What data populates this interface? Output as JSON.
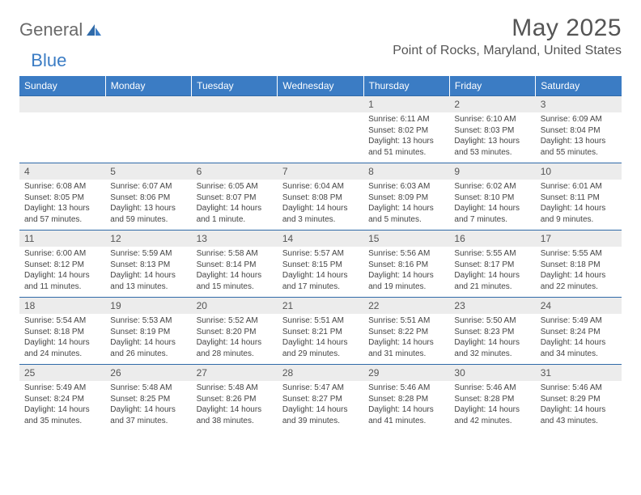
{
  "brand": {
    "part1": "General",
    "part2": "Blue"
  },
  "title": "May 2025",
  "location": "Point of Rocks, Maryland, United States",
  "colors": {
    "header_bg": "#3b7cc4",
    "header_text": "#ffffff",
    "numrow_bg": "#ececec",
    "row_border": "#2f6aa8",
    "body_text": "#444",
    "title_text": "#555"
  },
  "day_headers": [
    "Sunday",
    "Monday",
    "Tuesday",
    "Wednesday",
    "Thursday",
    "Friday",
    "Saturday"
  ],
  "weeks": [
    {
      "nums": [
        "",
        "",
        "",
        "",
        "1",
        "2",
        "3"
      ],
      "details": [
        null,
        null,
        null,
        null,
        {
          "sunrise": "6:11 AM",
          "sunset": "8:02 PM",
          "daylight": "13 hours and 51 minutes."
        },
        {
          "sunrise": "6:10 AM",
          "sunset": "8:03 PM",
          "daylight": "13 hours and 53 minutes."
        },
        {
          "sunrise": "6:09 AM",
          "sunset": "8:04 PM",
          "daylight": "13 hours and 55 minutes."
        }
      ]
    },
    {
      "nums": [
        "4",
        "5",
        "6",
        "7",
        "8",
        "9",
        "10"
      ],
      "details": [
        {
          "sunrise": "6:08 AM",
          "sunset": "8:05 PM",
          "daylight": "13 hours and 57 minutes."
        },
        {
          "sunrise": "6:07 AM",
          "sunset": "8:06 PM",
          "daylight": "13 hours and 59 minutes."
        },
        {
          "sunrise": "6:05 AM",
          "sunset": "8:07 PM",
          "daylight": "14 hours and 1 minute."
        },
        {
          "sunrise": "6:04 AM",
          "sunset": "8:08 PM",
          "daylight": "14 hours and 3 minutes."
        },
        {
          "sunrise": "6:03 AM",
          "sunset": "8:09 PM",
          "daylight": "14 hours and 5 minutes."
        },
        {
          "sunrise": "6:02 AM",
          "sunset": "8:10 PM",
          "daylight": "14 hours and 7 minutes."
        },
        {
          "sunrise": "6:01 AM",
          "sunset": "8:11 PM",
          "daylight": "14 hours and 9 minutes."
        }
      ]
    },
    {
      "nums": [
        "11",
        "12",
        "13",
        "14",
        "15",
        "16",
        "17"
      ],
      "details": [
        {
          "sunrise": "6:00 AM",
          "sunset": "8:12 PM",
          "daylight": "14 hours and 11 minutes."
        },
        {
          "sunrise": "5:59 AM",
          "sunset": "8:13 PM",
          "daylight": "14 hours and 13 minutes."
        },
        {
          "sunrise": "5:58 AM",
          "sunset": "8:14 PM",
          "daylight": "14 hours and 15 minutes."
        },
        {
          "sunrise": "5:57 AM",
          "sunset": "8:15 PM",
          "daylight": "14 hours and 17 minutes."
        },
        {
          "sunrise": "5:56 AM",
          "sunset": "8:16 PM",
          "daylight": "14 hours and 19 minutes."
        },
        {
          "sunrise": "5:55 AM",
          "sunset": "8:17 PM",
          "daylight": "14 hours and 21 minutes."
        },
        {
          "sunrise": "5:55 AM",
          "sunset": "8:18 PM",
          "daylight": "14 hours and 22 minutes."
        }
      ]
    },
    {
      "nums": [
        "18",
        "19",
        "20",
        "21",
        "22",
        "23",
        "24"
      ],
      "details": [
        {
          "sunrise": "5:54 AM",
          "sunset": "8:18 PM",
          "daylight": "14 hours and 24 minutes."
        },
        {
          "sunrise": "5:53 AM",
          "sunset": "8:19 PM",
          "daylight": "14 hours and 26 minutes."
        },
        {
          "sunrise": "5:52 AM",
          "sunset": "8:20 PM",
          "daylight": "14 hours and 28 minutes."
        },
        {
          "sunrise": "5:51 AM",
          "sunset": "8:21 PM",
          "daylight": "14 hours and 29 minutes."
        },
        {
          "sunrise": "5:51 AM",
          "sunset": "8:22 PM",
          "daylight": "14 hours and 31 minutes."
        },
        {
          "sunrise": "5:50 AM",
          "sunset": "8:23 PM",
          "daylight": "14 hours and 32 minutes."
        },
        {
          "sunrise": "5:49 AM",
          "sunset": "8:24 PM",
          "daylight": "14 hours and 34 minutes."
        }
      ]
    },
    {
      "nums": [
        "25",
        "26",
        "27",
        "28",
        "29",
        "30",
        "31"
      ],
      "details": [
        {
          "sunrise": "5:49 AM",
          "sunset": "8:24 PM",
          "daylight": "14 hours and 35 minutes."
        },
        {
          "sunrise": "5:48 AM",
          "sunset": "8:25 PM",
          "daylight": "14 hours and 37 minutes."
        },
        {
          "sunrise": "5:48 AM",
          "sunset": "8:26 PM",
          "daylight": "14 hours and 38 minutes."
        },
        {
          "sunrise": "5:47 AM",
          "sunset": "8:27 PM",
          "daylight": "14 hours and 39 minutes."
        },
        {
          "sunrise": "5:46 AM",
          "sunset": "8:28 PM",
          "daylight": "14 hours and 41 minutes."
        },
        {
          "sunrise": "5:46 AM",
          "sunset": "8:28 PM",
          "daylight": "14 hours and 42 minutes."
        },
        {
          "sunrise": "5:46 AM",
          "sunset": "8:29 PM",
          "daylight": "14 hours and 43 minutes."
        }
      ]
    }
  ],
  "labels": {
    "sunrise": "Sunrise: ",
    "sunset": "Sunset: ",
    "daylight": "Daylight: "
  }
}
